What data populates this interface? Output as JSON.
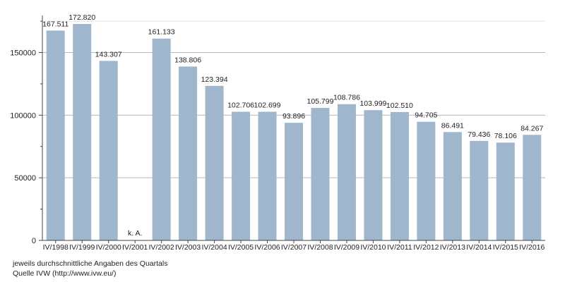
{
  "colors": {
    "bar": "#9fb6cd",
    "grid": "#b8b8b8",
    "axis": "#444444",
    "text": "#222222"
  },
  "chart_data": {
    "type": "bar",
    "categories": [
      "IV/1998",
      "IV/1999",
      "IV/2000",
      "IV/2001",
      "IV/2002",
      "IV/2003",
      "IV/2004",
      "IV/2005",
      "IV/2006",
      "IV/2007",
      "IV/2008",
      "IV/2009",
      "IV/2010",
      "IV/2011",
      "IV/2012",
      "IV/2013",
      "IV/2014",
      "IV/2015",
      "IV/2016"
    ],
    "values": [
      167511,
      172820,
      143307,
      null,
      161133,
      138806,
      123394,
      102706,
      102699,
      93896,
      105799,
      108786,
      103999,
      102510,
      94705,
      86491,
      79436,
      78106,
      84267
    ],
    "data_labels": [
      "167.511",
      "172.820",
      "143.307",
      "k. A.",
      "161.133",
      "138.806",
      "123.394",
      "102.706",
      "102.699",
      "93.896",
      "105.799",
      "108.786",
      "103.999",
      "102.510",
      "94.705",
      "86.491",
      "79.436",
      "78.106",
      "84.267"
    ],
    "yticks": [
      0,
      50000,
      100000,
      150000
    ],
    "ytick_labels": [
      "0",
      "50000",
      "100000",
      "150000"
    ],
    "ylim": [
      0,
      175000
    ],
    "grid": true,
    "title": "",
    "xlabel": "",
    "ylabel": ""
  },
  "footnotes": {
    "line1": "jeweils durchschnittliche Angaben des Quartals",
    "line2": "Quelle IVW (http://www.ivw.eu/)"
  }
}
